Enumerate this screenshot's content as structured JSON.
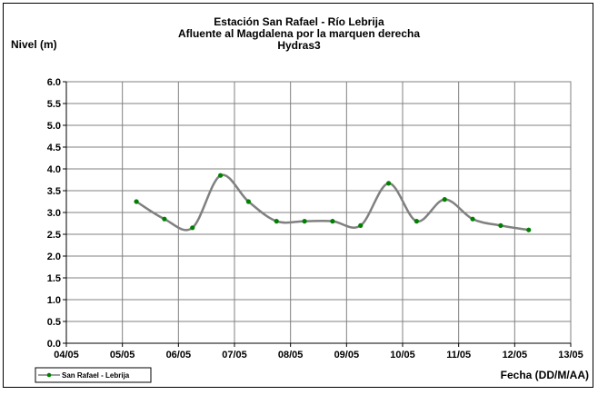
{
  "chart_data": {
    "type": "line",
    "title_lines": [
      "Estación San Rafael - Río Lebrija",
      "Afluente al Magdalena por la marquen derecha",
      "Hydras3"
    ],
    "ylabel": "Nivel (m)",
    "xlabel": "Fecha (DD/M/AA)",
    "ylim": [
      0,
      6
    ],
    "yticks": [
      "0.0",
      "0.5",
      "1.0",
      "1.5",
      "2.0",
      "2.5",
      "3.0",
      "3.5",
      "4.0",
      "4.5",
      "5.0",
      "5.5",
      "6.0"
    ],
    "xlim": [
      "04/05",
      "13/05"
    ],
    "xticks": [
      "04/05",
      "05/05",
      "06/05",
      "07/05",
      "08/05",
      "09/05",
      "10/05",
      "11/05",
      "12/05",
      "13/05"
    ],
    "grid": true,
    "legend_position": "bottom-left",
    "series": [
      {
        "name": "San Rafael - Lebrija",
        "color": "#808080",
        "marker_color": "#008000",
        "points": [
          {
            "x": "05/05 06:00",
            "y": 3.25
          },
          {
            "x": "05/05 18:00",
            "y": 2.85
          },
          {
            "x": "06/05 06:00",
            "y": 2.65
          },
          {
            "x": "06/05 18:00",
            "y": 3.85
          },
          {
            "x": "07/05 06:00",
            "y": 3.25
          },
          {
            "x": "07/05 18:00",
            "y": 2.8
          },
          {
            "x": "08/05 06:00",
            "y": 2.8
          },
          {
            "x": "08/05 18:00",
            "y": 2.8
          },
          {
            "x": "09/05 06:00",
            "y": 2.7
          },
          {
            "x": "09/05 18:00",
            "y": 3.67
          },
          {
            "x": "10/05 06:00",
            "y": 2.8
          },
          {
            "x": "10/05 18:00",
            "y": 3.3
          },
          {
            "x": "11/05 06:00",
            "y": 2.85
          },
          {
            "x": "11/05 18:00",
            "y": 2.7
          },
          {
            "x": "12/05 06:00",
            "y": 2.6
          }
        ]
      }
    ]
  }
}
